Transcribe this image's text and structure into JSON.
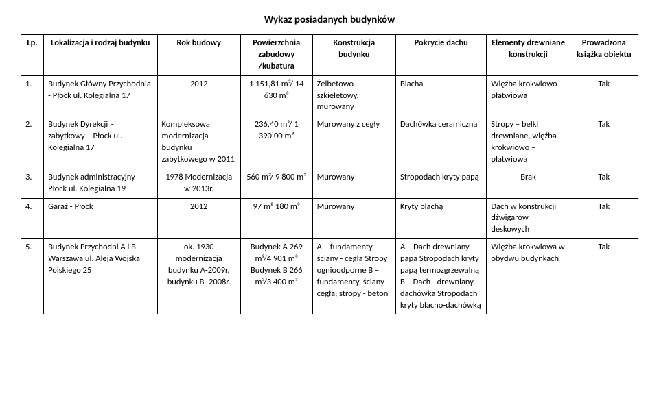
{
  "title": "Wykaz posiadanych budynków",
  "columns": [
    "Lp.",
    "Lokalizacja i rodzaj budynku",
    "Rok budowy",
    "Powierzchnia zabudowy /kubatura",
    "Konstrukcja budynku",
    "Pokrycie dachu",
    "Elementy drewniane konstrukcji",
    "Prowadzona książka obiektu"
  ],
  "rows": [
    {
      "lp": "1.",
      "loc": "Budynek Główny Przychodnia  - Płock ul. Kolegialna 17",
      "year": "2012",
      "area": "1 151,81 m²/ 14 630 m³",
      "constr": "Żelbetowo – szkieletowy, murowany",
      "roof": "Blacha",
      "wood": "Więźba krokwiowo – płatwiowa",
      "book": "Tak"
    },
    {
      "lp": "2.",
      "loc": "Budynek Dyrekcji – zabytkowy – Płock ul. Kolegialna 17",
      "year": "Kompleksowa modernizacja budynku zabytkowego w 2011",
      "area": "236,40 m²/ 1 390,00 m³",
      "constr": "Murowany z cegły",
      "roof": "Dachówka ceramiczna",
      "wood": "Stropy – belki drewniane, więźba krokwiowo – płatwiowa",
      "book": "Tak"
    },
    {
      "lp": "3.",
      "loc": "Budynek administracyjny - Płock ul. Kolegialna 19",
      "year": "1978 Modernizacja w 2013r.",
      "area": "560 m²/ 9 800 m³",
      "constr": "Murowany",
      "roof": "Stropodach kryty papą",
      "wood": "Brak",
      "book": "Tak"
    },
    {
      "lp": "4.",
      "loc": "Garaż  - Płock",
      "year": "2012",
      "area": "97 m² 180 m³",
      "constr": "Murowany",
      "roof": "Kryty blachą",
      "wood": "Dach w konstrukcji dźwigarów deskowych",
      "book": "Tak"
    },
    {
      "lp": "5.",
      "loc": "Budynek Przychodni A i B – Warszawa ul. Aleja Wojska Polskiego 25",
      "year": "ok. 1930 modernizacja budynku A-2009r, budynku B -2008r.",
      "area": "Budynek A 269 m²/4 901 m³ Budynek B 266 m²/3 400 m³",
      "constr": "A – fundamenty, ściany - cegła Stropy ognioodporne B – fundamenty, ściany – cegła, stropy - beton",
      "roof": "A – Dach drewniany– papa Stropodach kryty papą termozgrzewalną B – Dach - drewniany – dachówka Stropodach kryty blacho-dachówką",
      "wood": "Więźba krokwiowa w obydwu budynkach",
      "book": "Tak"
    }
  ]
}
